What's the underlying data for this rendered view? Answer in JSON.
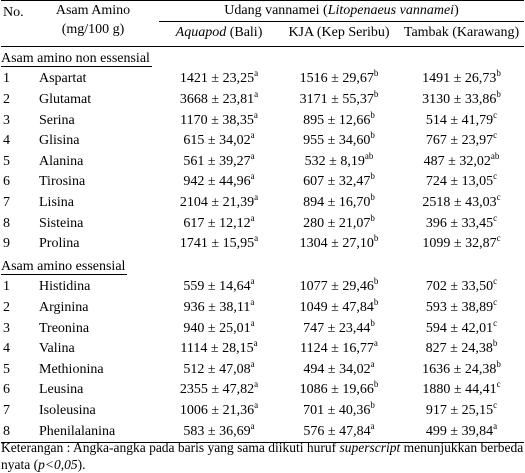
{
  "header": {
    "no": "No.",
    "amino": [
      "Asam Amino",
      "(mg/100 g)"
    ],
    "species": [
      "Udang vannamei (",
      "Litopenaeus vannamei",
      ")"
    ],
    "columns": [
      [
        "Aquapod",
        " (Bali)"
      ],
      "KJA (Kep Seribu)",
      "Tambak (Karawang)"
    ]
  },
  "groups": [
    {
      "title": "Asam amino non essensial",
      "rows": [
        {
          "no": "1",
          "name": "Aspartat",
          "cells": [
            {
              "v": "1421 ± 23,25",
              "sup": "a"
            },
            {
              "v": "1516 ± 29,67",
              "sup": "b"
            },
            {
              "v": "1491 ± 26,73",
              "sup": "b"
            }
          ]
        },
        {
          "no": "2",
          "name": "Glutamat",
          "cells": [
            {
              "v": "3668 ± 23,81",
              "sup": "a"
            },
            {
              "v": "3171 ± 55,37",
              "sup": "b"
            },
            {
              "v": "3130 ± 33,86",
              "sup": "b"
            }
          ]
        },
        {
          "no": "3",
          "name": "Serina",
          "cells": [
            {
              "v": "1170 ± 38,35",
              "sup": "a"
            },
            {
              "v": "895 ± 12,66",
              "sup": "b"
            },
            {
              "v": "514 ± 41,79",
              "sup": "c"
            }
          ]
        },
        {
          "no": "4",
          "name": "Glisina",
          "cells": [
            {
              "v": "615 ± 34,02",
              "sup": "a"
            },
            {
              "v": "955 ± 34,60",
              "sup": "b"
            },
            {
              "v": "767 ± 23,97",
              "sup": "c"
            }
          ]
        },
        {
          "no": "5",
          "name": "Alanina",
          "cells": [
            {
              "v": "561 ± 39,27",
              "sup": "a"
            },
            {
              "v": "532 ± 8,19",
              "sup": "ab"
            },
            {
              "v": "487 ± 32,02",
              "sup": "ab"
            }
          ]
        },
        {
          "no": "6",
          "name": "Tirosina",
          "cells": [
            {
              "v": "942 ± 44,96",
              "sup": "a"
            },
            {
              "v": "607 ± 32,47",
              "sup": "b"
            },
            {
              "v": "724 ± 13,05",
              "sup": "c"
            }
          ]
        },
        {
          "no": "7",
          "name": "Lisina",
          "cells": [
            {
              "v": "2104 ± 21,39",
              "sup": "a"
            },
            {
              "v": "894 ± 16,70",
              "sup": "b"
            },
            {
              "v": "2518 ± 43,03",
              "sup": "c"
            }
          ]
        },
        {
          "no": "8",
          "name": "Sisteina",
          "cells": [
            {
              "v": "617 ± 12,12",
              "sup": "a"
            },
            {
              "v": "280 ± 21,07",
              "sup": "b"
            },
            {
              "v": "396 ± 33,45",
              "sup": "c"
            }
          ]
        },
        {
          "no": "9",
          "name": "Prolina",
          "cells": [
            {
              "v": "1741 ± 15,95",
              "sup": "a"
            },
            {
              "v": "1304 ± 27,10",
              "sup": "b"
            },
            {
              "v": "1099 ± 32,87",
              "sup": "c"
            }
          ]
        }
      ]
    },
    {
      "title": "Asam amino essensial",
      "rows": [
        {
          "no": "1",
          "name": "Histidina",
          "cells": [
            {
              "v": "559 ± 14,64",
              "sup": "a"
            },
            {
              "v": "1077 ± 29,46",
              "sup": "b"
            },
            {
              "v": "702 ± 33,50",
              "sup": "c"
            }
          ]
        },
        {
          "no": "2",
          "name": "Arginina",
          "cells": [
            {
              "v": "936 ± 38,11",
              "sup": "a"
            },
            {
              "v": "1049 ± 47,84",
              "sup": "b"
            },
            {
              "v": "593 ± 38,89",
              "sup": "c"
            }
          ]
        },
        {
          "no": "3",
          "name": "Treonina",
          "cells": [
            {
              "v": "940 ± 25,01",
              "sup": "a"
            },
            {
              "v": "747 ± 23,44",
              "sup": "b"
            },
            {
              "v": "594 ± 42,01",
              "sup": "c"
            }
          ]
        },
        {
          "no": "4",
          "name": "Valina",
          "cells": [
            {
              "v": "1114 ± 28,15",
              "sup": "a"
            },
            {
              "v": "1124 ± 16,77",
              "sup": "a"
            },
            {
              "v": "827 ± 24,38",
              "sup": "b"
            }
          ]
        },
        {
          "no": "5",
          "name": "Methionina",
          "cells": [
            {
              "v": "512 ± 47,08",
              "sup": "a"
            },
            {
              "v": "494 ± 34,02",
              "sup": "a"
            },
            {
              "v": "1636 ± 24,38",
              "sup": "b"
            }
          ]
        },
        {
          "no": "6",
          "name": "Leusina",
          "cells": [
            {
              "v": "2355 ± 47,82",
              "sup": "a"
            },
            {
              "v": "1086 ± 19,66",
              "sup": "b"
            },
            {
              "v": "1880 ± 44,41",
              "sup": "c"
            }
          ]
        },
        {
          "no": "7",
          "name": "Isoleusina",
          "cells": [
            {
              "v": "1006 ± 21,36",
              "sup": "a"
            },
            {
              "v": "701 ± 40,36",
              "sup": "b"
            },
            {
              "v": "917 ± 25,15",
              "sup": "c"
            }
          ]
        },
        {
          "no": "8",
          "name": "Phenilalanina",
          "cells": [
            {
              "v": "583 ± 36,69",
              "sup": "a"
            },
            {
              "v": "576 ± 47,84",
              "sup": "a"
            },
            {
              "v": "499 ± 39,84",
              "sup": "a"
            }
          ]
        }
      ]
    }
  ],
  "footnote": [
    "Keterangan : Angka-angka pada baris yang sama diikuti huruf ",
    "superscript",
    " menunjukkan berbeda nyata (",
    "p<0,05",
    ")."
  ]
}
